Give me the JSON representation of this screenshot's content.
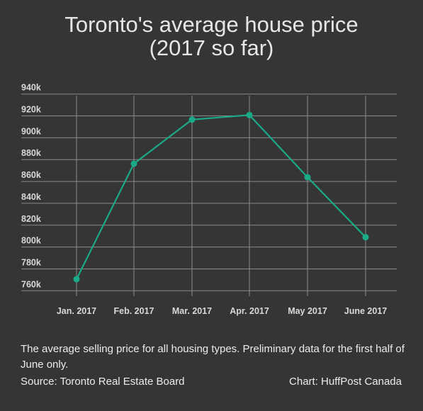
{
  "title_line1": "Toronto's average house price",
  "title_line2": "(2017 so far)",
  "note": "The average selling price for all housing types. Preliminary data for the first half of June only.",
  "source": "Source: Toronto Real Estate Board",
  "credit": "Chart: HuffPost Canada",
  "colors": {
    "line": "#1aaa88",
    "grid": "#8a8a8a",
    "background": "#353535"
  },
  "chart_data": {
    "type": "line",
    "categories": [
      "Jan. 2017",
      "Feb. 2017",
      "Mar. 2017",
      "Apr. 2017",
      "May 2017",
      "June 2017"
    ],
    "values": [
      770.6,
      876.3,
      916.6,
      920.8,
      863.9,
      809.0
    ],
    "y_ticks": [
      "760k",
      "780k",
      "800k",
      "820k",
      "840k",
      "860k",
      "880k",
      "900k",
      "920k",
      "940k"
    ],
    "ylim": [
      755,
      945
    ],
    "grid": true
  }
}
